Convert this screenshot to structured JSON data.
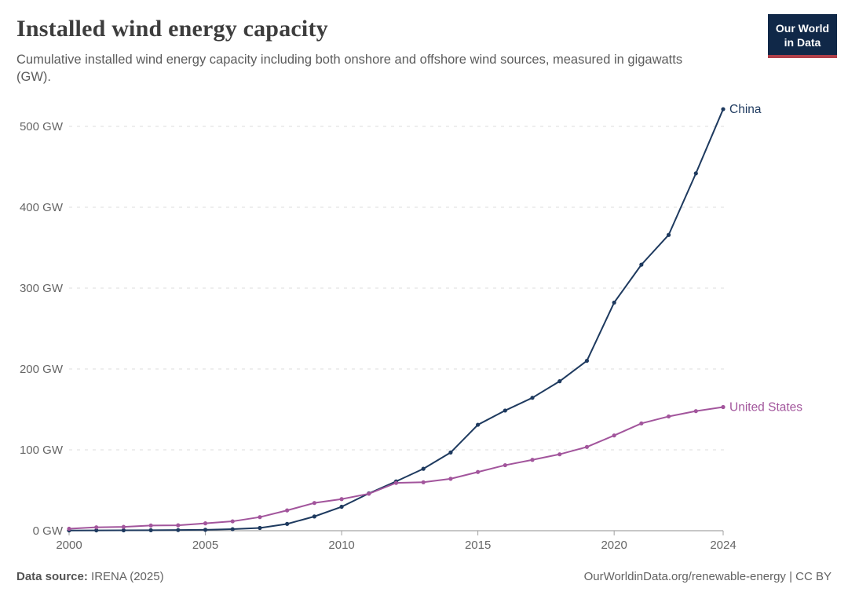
{
  "header": {
    "logo": {
      "line1": "Our World",
      "line2": "in Data",
      "bg": "#102848",
      "stripe": "#b0404a"
    }
  },
  "chart_data": {
    "type": "line",
    "title": "Installed wind energy capacity",
    "subtitle": "Cumulative installed wind energy capacity including both onshore and offshore wind sources, measured in gigawatts (GW).",
    "xlabel": "",
    "ylabel": "",
    "x": [
      2000,
      2001,
      2002,
      2003,
      2004,
      2005,
      2006,
      2007,
      2008,
      2009,
      2010,
      2011,
      2012,
      2013,
      2014,
      2015,
      2016,
      2017,
      2018,
      2019,
      2020,
      2021,
      2022,
      2023,
      2024
    ],
    "series": [
      {
        "name": "China",
        "color": "#1e3a5f",
        "values": [
          0.3,
          0.4,
          0.5,
          0.6,
          0.8,
          1.1,
          1.9,
          3.4,
          8.4,
          17.6,
          29.6,
          46.1,
          61.0,
          76.6,
          96.7,
          131.0,
          148.6,
          164.4,
          184.8,
          210.1,
          282.1,
          329.0,
          365.8,
          441.9,
          521.3
        ]
      },
      {
        "name": "United States",
        "color": "#a2559c",
        "values": [
          2.4,
          4.2,
          4.7,
          6.4,
          6.7,
          9.1,
          11.6,
          16.8,
          25.1,
          34.3,
          39.1,
          45.7,
          59.1,
          59.9,
          64.2,
          72.6,
          81.0,
          87.6,
          94.5,
          103.6,
          117.8,
          132.7,
          141.3,
          147.9,
          152.9
        ]
      }
    ],
    "xlim": [
      2000,
      2024
    ],
    "ylim": [
      0,
      500
    ],
    "x_ticks": [
      2000,
      2005,
      2010,
      2015,
      2020,
      2024
    ],
    "y_ticks": [
      0,
      100,
      200,
      300,
      400,
      500
    ],
    "y_tick_suffix": " GW",
    "grid": "horizontal-dashed",
    "legend_position": "end-of-line",
    "colors": {
      "grid": "#dcdcdc",
      "axis": "#8f8f8f",
      "tick": "#a0a0a0",
      "tick_text": "#666666"
    }
  },
  "footer": {
    "source_label": "Data source:",
    "source_value": " IRENA (2025)",
    "rights": "OurWorldinData.org/renewable-energy | CC BY"
  }
}
